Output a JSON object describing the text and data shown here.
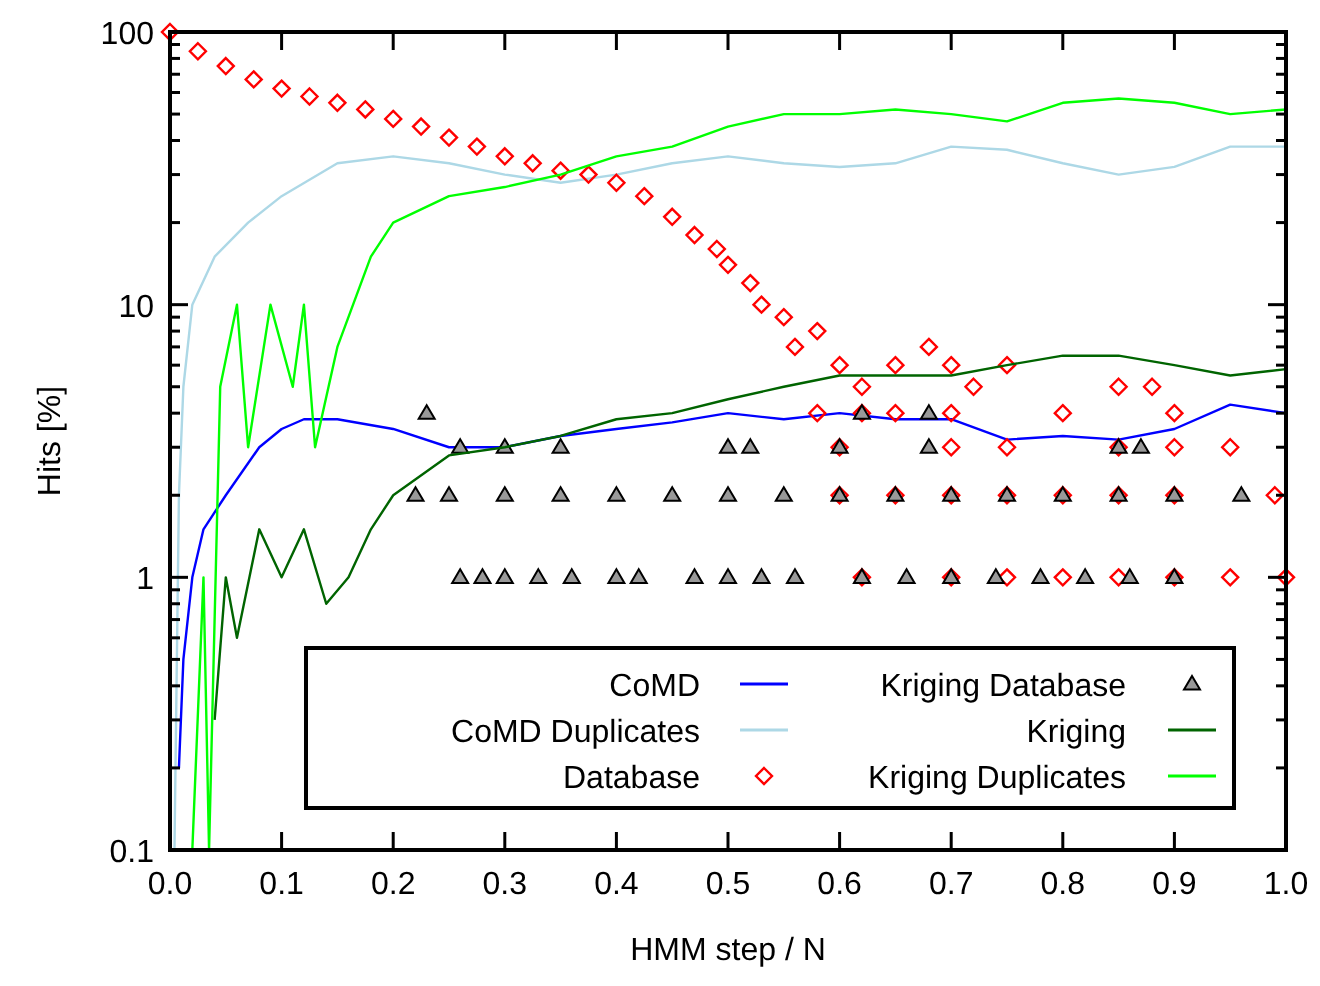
{
  "chart_data": {
    "type": "line",
    "xlabel": "HMM step / N",
    "ylabel": "Hits [%]",
    "log": "y",
    "xlim": [
      0,
      1
    ],
    "ylim": [
      0.1,
      100
    ],
    "xticks": [
      {
        "value": 0,
        "label": "0.0"
      },
      0.1,
      0.2,
      0.3,
      0.4,
      0.5,
      0.6,
      0.7,
      0.8,
      0.9,
      {
        "value": 1,
        "label": "1.0"
      }
    ],
    "yticks": [
      0.1,
      1,
      10,
      100
    ],
    "grid": false,
    "legend": "bottom right",
    "series": [
      {
        "name": "CoMD",
        "color": "#0000ff",
        "x": [
          0.008,
          0.012,
          0.02,
          0.03,
          0.05,
          0.08,
          0.1,
          0.12,
          0.15,
          0.2,
          0.25,
          0.3,
          0.35,
          0.4,
          0.45,
          0.5,
          0.55,
          0.6,
          0.65,
          0.7,
          0.75,
          0.8,
          0.85,
          0.9,
          0.95,
          1
        ],
        "values": [
          0.2,
          0.5,
          1,
          1.5,
          2,
          3,
          3.5,
          3.8,
          3.8,
          3.5,
          3,
          3,
          3.3,
          3.5,
          3.7,
          4,
          3.8,
          4,
          3.8,
          3.8,
          3.2,
          3.3,
          3.2,
          3.5,
          4.3,
          4
        ]
      },
      {
        "name": "CoMD Duplicates",
        "color": "#add8e6",
        "x": [
          0.004,
          0.008,
          0.012,
          0.02,
          0.04,
          0.07,
          0.1,
          0.15,
          0.2,
          0.25,
          0.3,
          0.35,
          0.4,
          0.45,
          0.5,
          0.55,
          0.6,
          0.65,
          0.7,
          0.75,
          0.8,
          0.85,
          0.9,
          0.95,
          1
        ],
        "values": [
          0.1,
          2,
          5,
          10,
          15,
          20,
          25,
          33,
          35,
          33,
          30,
          28,
          30,
          33,
          35,
          33,
          32,
          33,
          38,
          37,
          33,
          30,
          32,
          38,
          38
        ]
      },
      {
        "name": "Database",
        "type": "scatter",
        "marker": "diamond",
        "color": "#ff0000",
        "x": [
          0,
          0.025,
          0.05,
          0.075,
          0.1,
          0.125,
          0.15,
          0.175,
          0.2,
          0.225,
          0.25,
          0.275,
          0.3,
          0.325,
          0.35,
          0.375,
          0.4,
          0.425,
          0.45,
          0.47,
          0.49,
          0.5,
          0.52,
          0.53,
          0.55,
          0.56,
          0.58,
          0.6,
          0.62,
          0.65,
          0.68,
          0.7,
          0.72,
          0.75,
          0.58,
          0.62,
          0.65,
          0.7,
          0.8,
          0.85,
          0.88,
          0.9,
          0.6,
          0.7,
          0.75,
          0.85,
          0.9,
          0.95,
          0.6,
          0.65,
          0.7,
          0.75,
          0.8,
          0.85,
          0.9,
          0.99,
          0.62,
          0.7,
          0.75,
          0.8,
          0.85,
          0.9,
          0.95,
          1
        ],
        "values": [
          100,
          85,
          75,
          67,
          62,
          58,
          55,
          52,
          48,
          45,
          41,
          38,
          35,
          33,
          31,
          30,
          28,
          25,
          21,
          18,
          16,
          14,
          12,
          10,
          9,
          7,
          8,
          6,
          5,
          6,
          7,
          6,
          5,
          6,
          4,
          4,
          4,
          4,
          4,
          5,
          5,
          4,
          3,
          3,
          3,
          3,
          3,
          3,
          2,
          2,
          2,
          2,
          2,
          2,
          2,
          2,
          1,
          1,
          1,
          1,
          1,
          1,
          1,
          1
        ]
      },
      {
        "name": "Kriging Database",
        "type": "scatter",
        "marker": "triangle",
        "color": "#000000",
        "x": [
          0.26,
          0.28,
          0.3,
          0.33,
          0.36,
          0.4,
          0.42,
          0.47,
          0.5,
          0.53,
          0.56,
          0.62,
          0.66,
          0.7,
          0.74,
          0.78,
          0.82,
          0.86,
          0.9,
          0.22,
          0.25,
          0.3,
          0.35,
          0.4,
          0.45,
          0.5,
          0.55,
          0.6,
          0.65,
          0.7,
          0.75,
          0.8,
          0.85,
          0.9,
          0.96,
          0.26,
          0.3,
          0.35,
          0.5,
          0.52,
          0.6,
          0.68,
          0.85,
          0.87,
          0.23,
          0.62,
          0.68
        ],
        "values": [
          1,
          1,
          1,
          1,
          1,
          1,
          1,
          1,
          1,
          1,
          1,
          1,
          1,
          1,
          1,
          1,
          1,
          1,
          1,
          2,
          2,
          2,
          2,
          2,
          2,
          2,
          2,
          2,
          2,
          2,
          2,
          2,
          2,
          2,
          2,
          3,
          3,
          3,
          3,
          3,
          3,
          3,
          3,
          3,
          4,
          4,
          4
        ]
      },
      {
        "name": "Kriging",
        "color": "#006400",
        "x": [
          0.04,
          0.05,
          0.06,
          0.08,
          0.1,
          0.12,
          0.14,
          0.16,
          0.18,
          0.2,
          0.25,
          0.3,
          0.35,
          0.4,
          0.45,
          0.5,
          0.55,
          0.6,
          0.65,
          0.7,
          0.75,
          0.8,
          0.85,
          0.9,
          0.95,
          1
        ],
        "values": [
          0.3,
          1,
          0.6,
          1.5,
          1,
          1.5,
          0.8,
          1,
          1.5,
          2,
          2.8,
          3,
          3.3,
          3.8,
          4,
          4.5,
          5,
          5.5,
          5.5,
          5.5,
          6,
          6.5,
          6.5,
          6,
          5.5,
          5.8
        ]
      },
      {
        "name": "Kriging Duplicates",
        "color": "#00ff00",
        "x": [
          0.02,
          0.03,
          0.035,
          0.045,
          0.06,
          0.07,
          0.09,
          0.11,
          0.12,
          0.13,
          0.15,
          0.18,
          0.2,
          0.25,
          0.3,
          0.35,
          0.4,
          0.45,
          0.5,
          0.55,
          0.6,
          0.65,
          0.7,
          0.75,
          0.8,
          0.85,
          0.9,
          0.95,
          1
        ],
        "values": [
          0.1,
          1,
          0.1,
          5,
          10,
          3,
          10,
          5,
          10,
          3,
          7,
          15,
          20,
          25,
          27,
          30,
          35,
          38,
          45,
          50,
          50,
          52,
          50,
          47,
          55,
          57,
          55,
          50,
          52
        ]
      }
    ]
  }
}
